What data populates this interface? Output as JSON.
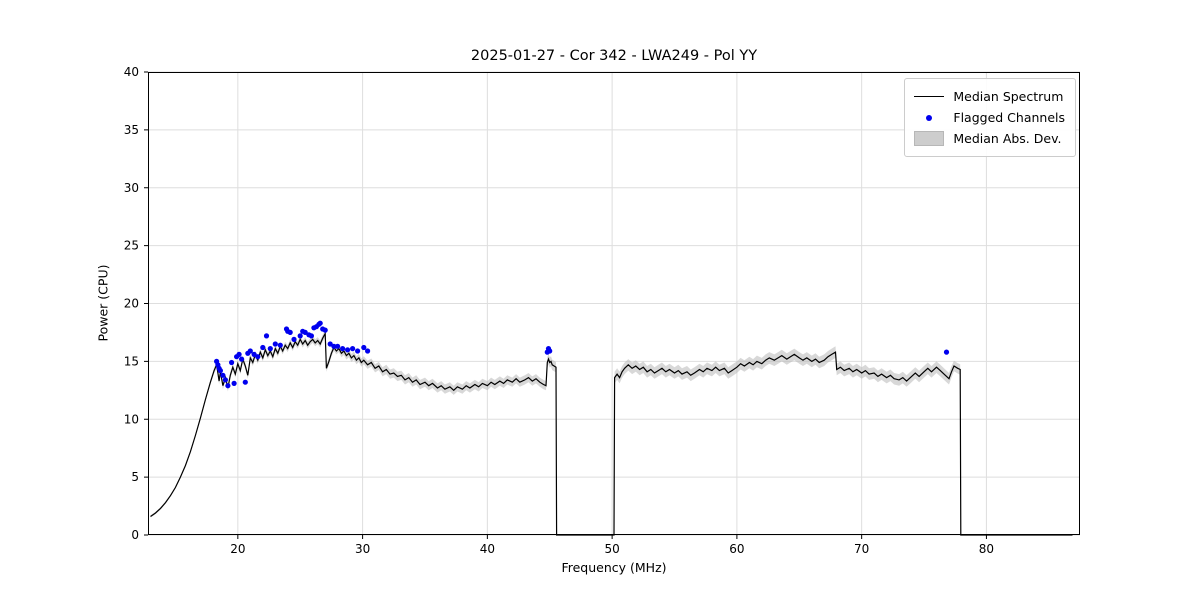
{
  "chart_data": {
    "type": "line",
    "title": "2025-01-27 - Cor 342 - LWA249 - Pol YY",
    "xlabel": "Frequency (MHz)",
    "ylabel": "Power (CPU)",
    "xlim": [
      12.8,
      87.5
    ],
    "ylim": [
      0,
      40
    ],
    "x_ticks": [
      20,
      30,
      40,
      50,
      60,
      70,
      80
    ],
    "y_ticks": [
      0,
      5,
      10,
      15,
      20,
      25,
      30,
      35,
      40
    ],
    "grid": true,
    "legend_position": "upper right",
    "legend_entries": [
      "Median Spectrum",
      "Flagged Channels",
      "Median Abs. Dev."
    ],
    "colors": {
      "median_line": "#000000",
      "flagged_points": "#0000ee",
      "mad_band": "#b8b8b8",
      "grid": "#dedede",
      "spine": "#000000"
    },
    "median_spectrum": [
      [
        13.0,
        1.6,
        0.1
      ],
      [
        13.4,
        1.9,
        0.1
      ],
      [
        13.8,
        2.3,
        0.1
      ],
      [
        14.2,
        2.8,
        0.1
      ],
      [
        14.6,
        3.4,
        0.1
      ],
      [
        15.0,
        4.1,
        0.1
      ],
      [
        15.4,
        5.0,
        0.1
      ],
      [
        15.8,
        6.0,
        0.1
      ],
      [
        16.2,
        7.2,
        0.1
      ],
      [
        16.6,
        8.6,
        0.12
      ],
      [
        17.0,
        10.1,
        0.15
      ],
      [
        17.4,
        11.7,
        0.15
      ],
      [
        17.8,
        13.2,
        0.2
      ],
      [
        18.1,
        14.2,
        0.25
      ],
      [
        18.3,
        14.7,
        0.3
      ],
      [
        18.4,
        14.0,
        0.3
      ],
      [
        18.5,
        13.3,
        0.3
      ],
      [
        18.6,
        14.1,
        0.3
      ],
      [
        18.8,
        12.9,
        0.3
      ],
      [
        19.0,
        13.6,
        0.3
      ],
      [
        19.2,
        12.7,
        0.3
      ],
      [
        19.4,
        13.8,
        0.3
      ],
      [
        19.6,
        14.5,
        0.3
      ],
      [
        19.8,
        13.9,
        0.3
      ],
      [
        20.0,
        14.8,
        0.3
      ],
      [
        20.2,
        14.2,
        0.3
      ],
      [
        20.4,
        15.2,
        0.3
      ],
      [
        20.6,
        14.6,
        0.3
      ],
      [
        20.8,
        13.8,
        0.3
      ],
      [
        21.0,
        15.3,
        0.3
      ],
      [
        21.2,
        14.9,
        0.3
      ],
      [
        21.4,
        15.6,
        0.3
      ],
      [
        21.6,
        15.1,
        0.3
      ],
      [
        21.8,
        15.8,
        0.3
      ],
      [
        22.0,
        15.3,
        0.3
      ],
      [
        22.2,
        16.0,
        0.3
      ],
      [
        22.4,
        15.5,
        0.3
      ],
      [
        22.6,
        15.9,
        0.3
      ],
      [
        22.8,
        15.4,
        0.3
      ],
      [
        23.0,
        16.1,
        0.3
      ],
      [
        23.2,
        15.7,
        0.3
      ],
      [
        23.4,
        16.3,
        0.3
      ],
      [
        23.6,
        15.9,
        0.3
      ],
      [
        23.8,
        16.4,
        0.3
      ],
      [
        24.0,
        16.1,
        0.3
      ],
      [
        24.2,
        16.6,
        0.3
      ],
      [
        24.4,
        16.2,
        0.3
      ],
      [
        24.6,
        16.7,
        0.3
      ],
      [
        24.8,
        16.4,
        0.3
      ],
      [
        25.0,
        16.9,
        0.3
      ],
      [
        25.2,
        16.5,
        0.3
      ],
      [
        25.4,
        16.8,
        0.3
      ],
      [
        25.6,
        16.4,
        0.3
      ],
      [
        25.8,
        16.7,
        0.3
      ],
      [
        26.0,
        16.9,
        0.3
      ],
      [
        26.2,
        16.6,
        0.3
      ],
      [
        26.4,
        16.8,
        0.3
      ],
      [
        26.6,
        16.5,
        0.3
      ],
      [
        26.8,
        17.0,
        0.3
      ],
      [
        27.0,
        17.4,
        0.3
      ],
      [
        27.1,
        14.4,
        0.3
      ],
      [
        27.3,
        15.0,
        0.3
      ],
      [
        27.5,
        15.7,
        0.3
      ],
      [
        27.7,
        16.2,
        0.3
      ],
      [
        27.9,
        15.9,
        0.3
      ],
      [
        28.1,
        16.1,
        0.3
      ],
      [
        28.3,
        15.7,
        0.35
      ],
      [
        28.5,
        15.9,
        0.35
      ],
      [
        28.7,
        15.5,
        0.35
      ],
      [
        28.9,
        15.7,
        0.35
      ],
      [
        29.1,
        15.3,
        0.35
      ],
      [
        29.3,
        15.5,
        0.35
      ],
      [
        29.5,
        15.1,
        0.35
      ],
      [
        29.7,
        15.3,
        0.35
      ],
      [
        29.9,
        14.9,
        0.35
      ],
      [
        30.1,
        15.1,
        0.35
      ],
      [
        30.4,
        14.7,
        0.35
      ],
      [
        30.7,
        14.9,
        0.35
      ],
      [
        31.0,
        14.4,
        0.35
      ],
      [
        31.3,
        14.6,
        0.35
      ],
      [
        31.6,
        14.1,
        0.4
      ],
      [
        31.9,
        14.3,
        0.4
      ],
      [
        32.2,
        13.9,
        0.4
      ],
      [
        32.5,
        14.0,
        0.4
      ],
      [
        32.8,
        13.7,
        0.4
      ],
      [
        33.1,
        13.8,
        0.4
      ],
      [
        33.4,
        13.4,
        0.4
      ],
      [
        33.7,
        13.6,
        0.4
      ],
      [
        34.0,
        13.2,
        0.4
      ],
      [
        34.3,
        13.4,
        0.4
      ],
      [
        34.6,
        13.0,
        0.4
      ],
      [
        35.0,
        13.2,
        0.4
      ],
      [
        35.3,
        12.9,
        0.4
      ],
      [
        35.6,
        13.1,
        0.4
      ],
      [
        36.0,
        12.7,
        0.4
      ],
      [
        36.3,
        12.9,
        0.4
      ],
      [
        36.6,
        12.6,
        0.4
      ],
      [
        37.0,
        12.8,
        0.4
      ],
      [
        37.3,
        12.5,
        0.4
      ],
      [
        37.6,
        12.8,
        0.4
      ],
      [
        38.0,
        12.6,
        0.4
      ],
      [
        38.3,
        12.9,
        0.4
      ],
      [
        38.6,
        12.7,
        0.4
      ],
      [
        39.0,
        13.0,
        0.4
      ],
      [
        39.3,
        12.8,
        0.4
      ],
      [
        39.6,
        13.1,
        0.4
      ],
      [
        40.0,
        12.9,
        0.4
      ],
      [
        40.3,
        13.2,
        0.4
      ],
      [
        40.6,
        13.0,
        0.4
      ],
      [
        41.0,
        13.3,
        0.4
      ],
      [
        41.3,
        13.1,
        0.4
      ],
      [
        41.6,
        13.4,
        0.4
      ],
      [
        42.0,
        13.2,
        0.4
      ],
      [
        42.3,
        13.5,
        0.4
      ],
      [
        42.6,
        13.2,
        0.4
      ],
      [
        43.0,
        13.4,
        0.4
      ],
      [
        43.3,
        13.6,
        0.4
      ],
      [
        43.6,
        13.3,
        0.4
      ],
      [
        43.9,
        13.5,
        0.4
      ],
      [
        44.2,
        13.2,
        0.4
      ],
      [
        44.5,
        13.0,
        0.4
      ],
      [
        44.7,
        12.9,
        0.4
      ],
      [
        44.8,
        14.9,
        0.45
      ],
      [
        44.9,
        15.2,
        0.45
      ],
      [
        45.0,
        14.9,
        0.45
      ],
      [
        45.1,
        15.0,
        0.45
      ],
      [
        45.2,
        14.7,
        0.45
      ],
      [
        45.35,
        14.6,
        0.45
      ],
      [
        45.5,
        14.5,
        0.45
      ],
      [
        45.55,
        0,
        0
      ],
      [
        50.15,
        0,
        0
      ],
      [
        50.2,
        13.6,
        0.5
      ],
      [
        50.4,
        13.9,
        0.5
      ],
      [
        50.6,
        13.6,
        0.5
      ],
      [
        50.8,
        14.1,
        0.5
      ],
      [
        51.0,
        14.4,
        0.5
      ],
      [
        51.3,
        14.7,
        0.5
      ],
      [
        51.6,
        14.4,
        0.5
      ],
      [
        51.9,
        14.6,
        0.5
      ],
      [
        52.2,
        14.3,
        0.5
      ],
      [
        52.5,
        14.5,
        0.5
      ],
      [
        52.8,
        14.1,
        0.5
      ],
      [
        53.1,
        14.3,
        0.5
      ],
      [
        53.4,
        14.0,
        0.5
      ],
      [
        53.7,
        14.2,
        0.5
      ],
      [
        54.0,
        14.4,
        0.5
      ],
      [
        54.3,
        14.1,
        0.5
      ],
      [
        54.6,
        14.3,
        0.5
      ],
      [
        55.0,
        14.0,
        0.5
      ],
      [
        55.3,
        14.2,
        0.5
      ],
      [
        55.6,
        13.9,
        0.5
      ],
      [
        56.0,
        14.1,
        0.5
      ],
      [
        56.3,
        13.8,
        0.5
      ],
      [
        56.6,
        14.0,
        0.5
      ],
      [
        57.0,
        14.3,
        0.5
      ],
      [
        57.3,
        14.1,
        0.5
      ],
      [
        57.6,
        14.4,
        0.5
      ],
      [
        58.0,
        14.2,
        0.5
      ],
      [
        58.3,
        14.5,
        0.5
      ],
      [
        58.6,
        14.2,
        0.5
      ],
      [
        59.0,
        14.4,
        0.5
      ],
      [
        59.3,
        14.0,
        0.5
      ],
      [
        59.6,
        14.2,
        0.5
      ],
      [
        60.0,
        14.5,
        0.5
      ],
      [
        60.3,
        14.8,
        0.5
      ],
      [
        60.6,
        14.6,
        0.5
      ],
      [
        61.0,
        14.9,
        0.5
      ],
      [
        61.3,
        14.7,
        0.5
      ],
      [
        61.6,
        15.0,
        0.5
      ],
      [
        62.0,
        14.8,
        0.5
      ],
      [
        62.3,
        15.1,
        0.5
      ],
      [
        62.6,
        15.3,
        0.5
      ],
      [
        63.0,
        15.1,
        0.5
      ],
      [
        63.3,
        15.3,
        0.5
      ],
      [
        63.6,
        15.5,
        0.5
      ],
      [
        64.0,
        15.2,
        0.5
      ],
      [
        64.3,
        15.4,
        0.5
      ],
      [
        64.6,
        15.6,
        0.5
      ],
      [
        65.0,
        15.3,
        0.5
      ],
      [
        65.3,
        15.1,
        0.5
      ],
      [
        65.6,
        15.3,
        0.5
      ],
      [
        66.0,
        15.0,
        0.5
      ],
      [
        66.3,
        15.2,
        0.5
      ],
      [
        66.6,
        14.9,
        0.5
      ],
      [
        67.0,
        15.1,
        0.5
      ],
      [
        67.3,
        15.4,
        0.5
      ],
      [
        67.6,
        15.6,
        0.5
      ],
      [
        67.9,
        15.8,
        0.5
      ],
      [
        68.0,
        14.3,
        0.5
      ],
      [
        68.3,
        14.5,
        0.5
      ],
      [
        68.6,
        14.2,
        0.5
      ],
      [
        69.0,
        14.4,
        0.5
      ],
      [
        69.3,
        14.1,
        0.5
      ],
      [
        69.6,
        14.3,
        0.5
      ],
      [
        70.0,
        14.0,
        0.5
      ],
      [
        70.3,
        14.2,
        0.5
      ],
      [
        70.6,
        13.9,
        0.5
      ],
      [
        71.0,
        14.0,
        0.5
      ],
      [
        71.3,
        13.7,
        0.5
      ],
      [
        71.6,
        13.9,
        0.5
      ],
      [
        72.0,
        13.6,
        0.5
      ],
      [
        72.3,
        13.8,
        0.5
      ],
      [
        72.6,
        13.5,
        0.5
      ],
      [
        73.0,
        13.4,
        0.5
      ],
      [
        73.3,
        13.6,
        0.5
      ],
      [
        73.6,
        13.3,
        0.5
      ],
      [
        74.0,
        13.7,
        0.5
      ],
      [
        74.3,
        14.0,
        0.5
      ],
      [
        74.6,
        13.7,
        0.5
      ],
      [
        75.0,
        14.1,
        0.5
      ],
      [
        75.3,
        14.4,
        0.5
      ],
      [
        75.6,
        14.1,
        0.5
      ],
      [
        76.0,
        14.5,
        0.5
      ],
      [
        76.3,
        14.2,
        0.5
      ],
      [
        76.6,
        13.9,
        0.5
      ],
      [
        77.0,
        13.5,
        0.5
      ],
      [
        77.2,
        14.1,
        0.5
      ],
      [
        77.4,
        14.6,
        0.45
      ],
      [
        77.7,
        14.4,
        0.45
      ],
      [
        77.9,
        14.3,
        0.45
      ],
      [
        77.95,
        0,
        0
      ],
      [
        86.9,
        0,
        0
      ]
    ],
    "flagged_channels": [
      [
        18.3,
        15.0
      ],
      [
        18.4,
        14.7
      ],
      [
        18.5,
        14.4
      ],
      [
        18.6,
        14.2
      ],
      [
        18.8,
        13.8
      ],
      [
        19.0,
        13.4
      ],
      [
        19.2,
        12.9
      ],
      [
        19.5,
        14.9
      ],
      [
        19.7,
        13.1
      ],
      [
        19.9,
        15.4
      ],
      [
        20.1,
        15.6
      ],
      [
        20.3,
        15.2
      ],
      [
        20.6,
        13.2
      ],
      [
        20.8,
        15.7
      ],
      [
        21.0,
        15.9
      ],
      [
        21.3,
        15.6
      ],
      [
        21.6,
        15.4
      ],
      [
        22.0,
        16.2
      ],
      [
        22.3,
        17.2
      ],
      [
        22.6,
        16.1
      ],
      [
        23.0,
        16.5
      ],
      [
        23.4,
        16.4
      ],
      [
        23.9,
        17.8
      ],
      [
        24.0,
        17.6
      ],
      [
        24.2,
        17.5
      ],
      [
        24.5,
        16.9
      ],
      [
        25.0,
        17.2
      ],
      [
        25.2,
        17.6
      ],
      [
        25.4,
        17.5
      ],
      [
        25.7,
        17.3
      ],
      [
        25.9,
        17.2
      ],
      [
        26.1,
        17.9
      ],
      [
        26.3,
        18.0
      ],
      [
        26.5,
        18.2
      ],
      [
        26.6,
        18.3
      ],
      [
        26.8,
        17.8
      ],
      [
        27.0,
        17.7
      ],
      [
        27.4,
        16.5
      ],
      [
        27.7,
        16.3
      ],
      [
        28.0,
        16.3
      ],
      [
        28.4,
        16.1
      ],
      [
        28.8,
        16.0
      ],
      [
        29.2,
        16.1
      ],
      [
        29.6,
        15.9
      ],
      [
        30.1,
        16.2
      ],
      [
        30.4,
        15.9
      ],
      [
        44.8,
        15.8
      ],
      [
        44.9,
        16.1
      ],
      [
        45.0,
        15.9
      ],
      [
        76.8,
        15.8
      ]
    ]
  }
}
